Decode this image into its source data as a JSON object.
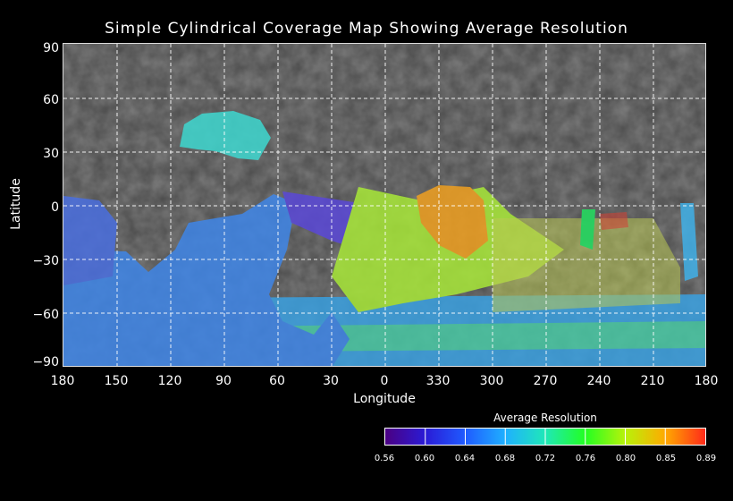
{
  "map": {
    "title": "Simple Cylindrical Coverage Map Showing Average Resolution",
    "xlabel": "Longitude",
    "ylabel": "Latitude",
    "projection": "simple cylindrical",
    "grid": true,
    "lat_ticks": [
      "90",
      "60",
      "30",
      "0",
      "−30",
      "−60",
      "−90"
    ],
    "lon_ticks": [
      "180",
      "150",
      "120",
      "90",
      "60",
      "30",
      "0",
      "330",
      "300",
      "270",
      "240",
      "210",
      "180"
    ]
  },
  "colorbar": {
    "title": "Average Resolution",
    "ticks": [
      "0.56",
      "0.60",
      "0.64",
      "0.68",
      "0.72",
      "0.76",
      "0.80",
      "0.85",
      "0.89"
    ],
    "colors": [
      "#4b0082",
      "#2a1bd6",
      "#1f5bff",
      "#1fb0ff",
      "#1fe8b8",
      "#22ff22",
      "#b8f20a",
      "#ffaa00",
      "#ff2a1a"
    ]
  }
}
